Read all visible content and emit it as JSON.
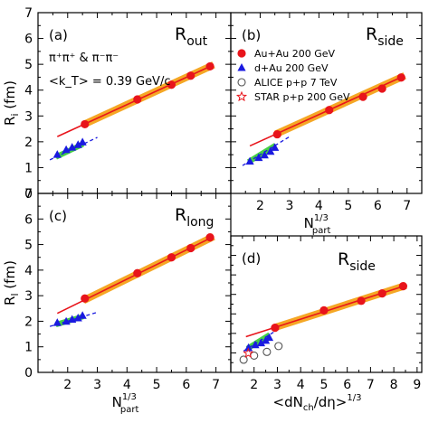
{
  "chart_data": [
    {
      "type": "scatter",
      "panel": "(a)",
      "title_main": "R",
      "title_sub": "out",
      "xlabel_main": "",
      "xlabel_sup": "",
      "ylabel_main": "R",
      "ylabel_sub": "i",
      "ylabel_unit": "(fm)",
      "xlim": [
        1,
        7.5
      ],
      "ylim": [
        0,
        7
      ],
      "xticks": [],
      "yticks": [
        "0",
        "1",
        "2",
        "3",
        "4",
        "5",
        "6",
        "7"
      ],
      "annotations": {
        "particles": "π⁺π⁺ & π⁻π⁻",
        "kt": "<k_T> = 0.39 GeV/c"
      },
      "series": [
        {
          "name": "Au+Au 200 GeV",
          "marker": "circle",
          "color": "#e8141b",
          "x": [
            2.58,
            4.35,
            5.5,
            6.15,
            6.8
          ],
          "y": [
            2.68,
            3.64,
            4.21,
            4.56,
            4.92
          ]
        },
        {
          "name": "d+Au 200 GeV",
          "marker": "triangle",
          "color": "#1a1ae0",
          "x": [
            1.65,
            1.95,
            2.15,
            2.35,
            2.5
          ],
          "y": [
            1.5,
            1.69,
            1.78,
            1.88,
            1.98
          ]
        }
      ],
      "fits": [
        {
          "color": "#e8141b",
          "x": [
            1.65,
            6.9
          ],
          "y": [
            2.2,
            4.97
          ]
        },
        {
          "color": "#1a1ae0",
          "x": [
            1.4,
            3.0
          ],
          "y": [
            1.3,
            2.17
          ]
        }
      ]
    },
    {
      "type": "scatter",
      "panel": "(b)",
      "title_main": "R",
      "title_sub": "side",
      "xlabel_main": "N",
      "xlabel_sup": "1/3",
      "xlabel_sub": "part",
      "xlim": [
        1,
        7.5
      ],
      "ylim": [
        0,
        7
      ],
      "xticks": [
        "2",
        "3",
        "4",
        "5",
        "6",
        "7"
      ],
      "yticks": [],
      "series": [
        {
          "name": "Au+Au 200 GeV",
          "marker": "circle",
          "color": "#e8141b",
          "x": [
            2.58,
            4.35,
            5.5,
            6.15,
            6.8
          ],
          "y": [
            2.29,
            3.23,
            3.74,
            4.06,
            4.49
          ]
        },
        {
          "name": "d+Au 200 GeV",
          "marker": "triangle",
          "color": "#1a1ae0",
          "x": [
            1.65,
            1.95,
            2.15,
            2.35,
            2.5
          ],
          "y": [
            1.24,
            1.38,
            1.48,
            1.62,
            1.77
          ]
        },
        {
          "name": "ALICE p+p 7 TeV",
          "marker": "open-circle",
          "color": "#555555",
          "x": [],
          "y": []
        },
        {
          "name": "STAR p+p 200 GeV",
          "marker": "open-star",
          "color": "#e8141b",
          "x": [],
          "y": []
        }
      ],
      "fits": [
        {
          "color": "#e8141b",
          "x": [
            1.65,
            6.9
          ],
          "y": [
            1.84,
            4.55
          ]
        },
        {
          "color": "#1a1ae0",
          "x": [
            1.4,
            3.0
          ],
          "y": [
            1.08,
            2.2
          ]
        }
      ]
    },
    {
      "type": "scatter",
      "panel": "(c)",
      "title_main": "R",
      "title_sub": "long",
      "xlabel_main": "N",
      "xlabel_sup": "1/3",
      "xlabel_sub": "part",
      "ylabel_main": "R",
      "ylabel_sub": "l",
      "ylabel_unit": "(fm)",
      "xlim": [
        1,
        7.5
      ],
      "ylim": [
        0,
        7
      ],
      "xticks": [
        "2",
        "3",
        "4",
        "5",
        "6",
        "7"
      ],
      "yticks": [
        "0",
        "1",
        "2",
        "3",
        "4",
        "5",
        "6",
        "7"
      ],
      "series": [
        {
          "name": "Au+Au 200 GeV",
          "marker": "circle",
          "color": "#e8141b",
          "x": [
            2.58,
            4.35,
            5.5,
            6.15,
            6.8
          ],
          "y": [
            2.89,
            3.88,
            4.5,
            4.86,
            5.28
          ]
        },
        {
          "name": "d+Au 200 GeV",
          "marker": "triangle",
          "color": "#1a1ae0",
          "x": [
            1.65,
            1.95,
            2.15,
            2.35,
            2.5
          ],
          "y": [
            1.94,
            1.99,
            2.07,
            2.12,
            2.22
          ]
        }
      ],
      "fits": [
        {
          "color": "#e8141b",
          "x": [
            1.65,
            6.9
          ],
          "y": [
            2.31,
            5.3
          ]
        },
        {
          "color": "#1a1ae0",
          "x": [
            1.4,
            3.0
          ],
          "y": [
            1.8,
            2.35
          ]
        }
      ]
    },
    {
      "type": "scatter",
      "panel": "(d)",
      "title_main": "R",
      "title_sub": "side",
      "xlabel_main": "<dN",
      "xlabel_sub1": "ch",
      "xlabel_mid": "/dη>",
      "xlabel_sup": "1/3",
      "xlim": [
        1,
        9.2
      ],
      "ylim": [
        0,
        7
      ],
      "xticks": [
        "2",
        "3",
        "4",
        "5",
        "6",
        "7",
        "8",
        "9"
      ],
      "yticks": [],
      "series": [
        {
          "name": "Au+Au 200 GeV",
          "marker": "circle",
          "color": "#e8141b",
          "x": [
            2.9,
            5.0,
            6.6,
            7.5,
            8.4
          ],
          "y": [
            2.29,
            3.18,
            3.67,
            4.05,
            4.42
          ]
        },
        {
          "name": "d+Au 200 GeV",
          "marker": "triangle",
          "color": "#1a1ae0",
          "x": [
            1.76,
            2.05,
            2.3,
            2.5,
            2.65
          ],
          "y": [
            1.26,
            1.4,
            1.5,
            1.63,
            1.78
          ]
        },
        {
          "name": "ALICE p+p 7 TeV",
          "marker": "open-circle",
          "color": "#555555",
          "x": [
            1.55,
            2.0,
            2.55,
            3.05
          ],
          "y": [
            0.65,
            0.86,
            1.05,
            1.35
          ]
        },
        {
          "name": "STAR p+p 200 GeV",
          "marker": "open-star",
          "color": "#e8141b",
          "x": [
            1.75
          ],
          "y": [
            0.98
          ]
        }
      ],
      "fits": [
        {
          "color": "#e8141b",
          "x": [
            1.65,
            8.5
          ],
          "y": [
            1.83,
            4.45
          ]
        },
        {
          "color": "#1a1ae0",
          "x": [
            1.55,
            3.05
          ],
          "y": [
            1.1,
            2.22
          ]
        }
      ]
    }
  ]
}
